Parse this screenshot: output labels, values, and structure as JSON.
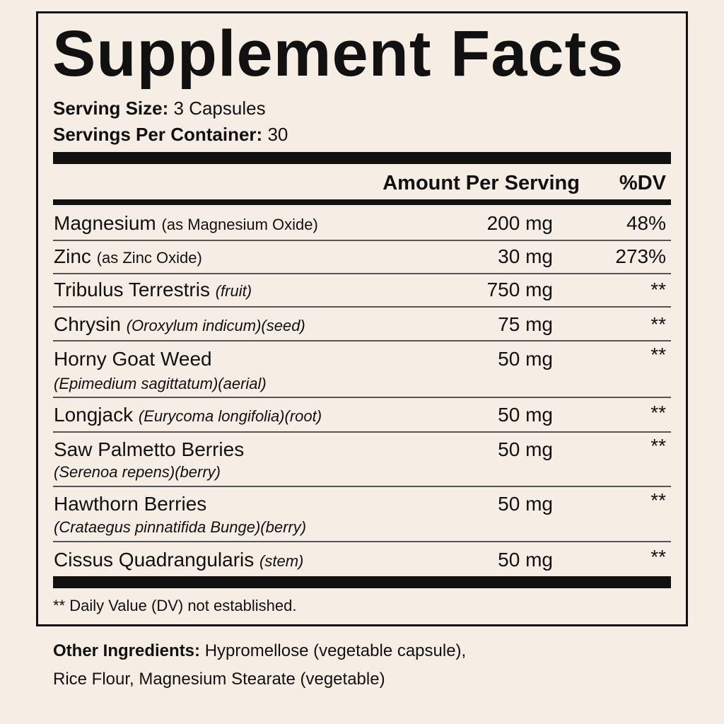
{
  "title": "Supplement Facts",
  "serving": [
    {
      "label": "Serving Size:",
      "value": "3 Capsules"
    },
    {
      "label": "Servings Per Container:",
      "value": "30"
    }
  ],
  "table": {
    "headers": [
      "Amount Per Serving",
      "%DV"
    ],
    "rows": [
      {
        "name": "Magnesium",
        "detail": "(as Magnesium Oxide)",
        "amount": "200 mg",
        "dv": "48%"
      },
      {
        "name": "Zinc",
        "detail": "(as Zinc Oxide)",
        "amount": "30 mg",
        "dv": "273%"
      },
      {
        "name": "Tribulus Terrestris",
        "detail": "(fruit)",
        "amount": "750 mg",
        "dv": "**"
      },
      {
        "name": "Chrysin",
        "detail": "(Oroxylum indicum)(seed)",
        "amount": "75 mg",
        "dv": "**"
      },
      {
        "name": "Horny Goat Weed",
        "detail": "(Epimedium sagittatum)(aerial)",
        "amount": "50 mg",
        "dv": "**"
      },
      {
        "name": "Longjack",
        "detail": "(Eurycoma longifolia)(root)",
        "amount": "50 mg",
        "dv": "**"
      },
      {
        "name": "Saw Palmetto Berries",
        "detail": "(Serenoa repens)(berry)",
        "amount": "50 mg",
        "dv": "**"
      },
      {
        "name": "Hawthorn Berries",
        "detail": "(Crataegus pinnatifida Bunge)(berry)",
        "amount": "50 mg",
        "dv": "**"
      },
      {
        "name": "Cissus Quadrangularis",
        "detail": "(stem)",
        "amount": "50 mg",
        "dv": "**"
      }
    ]
  },
  "footnote": "** Daily Value (DV) not established.",
  "other_ingredients": {
    "label": "Other Ingredients:",
    "lines": [
      "Hypromellose (vegetable capsule),",
      "Rice Flour, Magnesium Stearate (vegetable)"
    ]
  }
}
